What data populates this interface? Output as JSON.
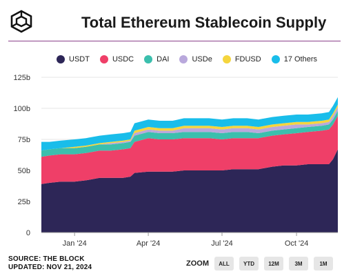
{
  "title": "Total Ethereum Stablecoin Supply",
  "source_line1": "SOURCE: THE BLOCK",
  "source_line2": "UPDATED: NOV 21, 2024",
  "zoom": {
    "label": "ZOOM",
    "buttons": [
      "ALL",
      "YTD",
      "12M",
      "3M",
      "1M"
    ]
  },
  "colors": {
    "accent_rule": "#8a3f8a"
  },
  "chart_data": {
    "type": "area",
    "stacked": true,
    "x": [
      "2023-11-21",
      "2023-12-01",
      "2023-12-15",
      "2024-01-01",
      "2024-01-15",
      "2024-02-01",
      "2024-02-15",
      "2024-03-01",
      "2024-03-10",
      "2024-03-15",
      "2024-04-01",
      "2024-04-15",
      "2024-05-01",
      "2024-05-15",
      "2024-06-01",
      "2024-06-15",
      "2024-07-01",
      "2024-07-15",
      "2024-08-01",
      "2024-08-15",
      "2024-09-01",
      "2024-09-15",
      "2024-10-01",
      "2024-10-15",
      "2024-11-01",
      "2024-11-10",
      "2024-11-15",
      "2024-11-21"
    ],
    "series": [
      {
        "name": "USDT",
        "color": "#2d2657",
        "values": [
          39,
          40,
          41,
          41,
          42,
          44,
          44,
          44,
          45,
          48,
          49,
          49,
          49,
          50,
          50,
          50,
          50,
          51,
          51,
          51,
          53,
          54,
          54,
          55,
          55,
          55,
          59,
          67
        ]
      },
      {
        "name": "USDC",
        "color": "#ef3f68",
        "values": [
          22,
          22,
          22,
          22,
          22,
          22,
          22,
          23,
          23,
          25,
          27,
          26,
          26,
          26,
          26,
          26,
          25,
          25,
          25,
          25,
          25,
          25,
          26,
          26,
          27,
          28,
          28,
          27
        ]
      },
      {
        "name": "DAI",
        "color": "#3bbfad",
        "values": [
          5,
          5,
          5,
          5,
          5,
          5,
          5,
          5,
          5,
          5,
          5,
          5,
          5,
          5,
          5,
          5,
          5,
          5,
          5,
          4,
          4,
          4,
          4,
          4,
          4,
          4,
          4,
          4
        ]
      },
      {
        "name": "USDe",
        "color": "#b9a8dc",
        "values": [
          0,
          0,
          0,
          0,
          0,
          0,
          1,
          1,
          1,
          2,
          2,
          2,
          2,
          3,
          3,
          3,
          3,
          3,
          3,
          3,
          3,
          3,
          3,
          2,
          2,
          2,
          3,
          3
        ]
      },
      {
        "name": "FDUSD",
        "color": "#f5d53d",
        "values": [
          0,
          0,
          0,
          1,
          1,
          1,
          1,
          1,
          1,
          2,
          2,
          2,
          2,
          2,
          2,
          2,
          2,
          2,
          2,
          2,
          2,
          2,
          2,
          2,
          2,
          2,
          2,
          2
        ]
      },
      {
        "name": "17 Others",
        "color": "#19bdea",
        "values": [
          7,
          6,
          6,
          6,
          6,
          6,
          6,
          6,
          6,
          6,
          6,
          6,
          6,
          6,
          6,
          6,
          6,
          6,
          6,
          6,
          6,
          6,
          6,
          6,
          6,
          6,
          6,
          6
        ]
      }
    ],
    "ylim": [
      0,
      125
    ],
    "yticks": [
      0,
      25,
      50,
      75,
      100,
      125
    ],
    "ytick_labels": [
      "0",
      "25b",
      "50b",
      "75b",
      "100b",
      "125b"
    ],
    "xticks": [
      {
        "date": "2024-01-01",
        "label": "Jan '24"
      },
      {
        "date": "2024-04-01",
        "label": "Apr '24"
      },
      {
        "date": "2024-07-01",
        "label": "Jul '24"
      },
      {
        "date": "2024-10-01",
        "label": "Oct '24"
      }
    ],
    "grid": true,
    "legend": "top"
  }
}
